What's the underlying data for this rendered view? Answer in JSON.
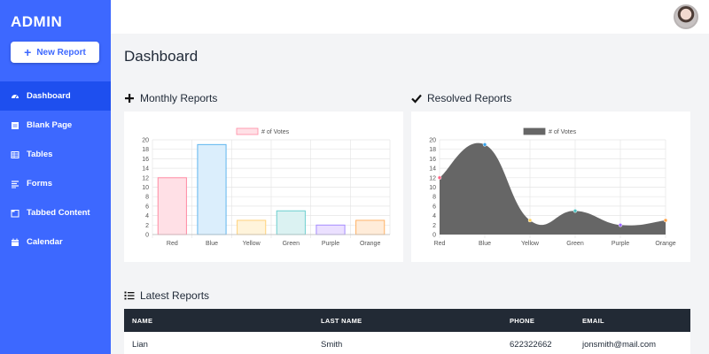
{
  "sidebar": {
    "brand": "ADMIN",
    "new_report_label": "New Report",
    "items": [
      {
        "label": "Dashboard",
        "icon": "dashboard-icon",
        "active": true
      },
      {
        "label": "Blank Page",
        "icon": "page-icon"
      },
      {
        "label": "Tables",
        "icon": "table-icon"
      },
      {
        "label": "Forms",
        "icon": "list-icon"
      },
      {
        "label": "Tabbed Content",
        "icon": "tab-icon"
      },
      {
        "label": "Calendar",
        "icon": "calendar-icon"
      }
    ],
    "color": "#3d68ff"
  },
  "header": {
    "avatar": "user-avatar"
  },
  "page_title": "Dashboard",
  "monthly": {
    "title": "Monthly Reports",
    "icon": "plus-icon"
  },
  "resolved": {
    "title": "Resolved Reports",
    "icon": "check-icon"
  },
  "latest": {
    "title": "Latest Reports",
    "icon": "list-icon",
    "columns": [
      "NAME",
      "LAST NAME",
      "PHONE",
      "EMAIL"
    ],
    "rows": [
      [
        "Lian",
        "Smith",
        "622322662",
        "jonsmith@mail.com"
      ]
    ]
  },
  "chart_data": [
    {
      "type": "bar",
      "categories": [
        "Red",
        "Blue",
        "Yellow",
        "Green",
        "Purple",
        "Orange"
      ],
      "series": [
        {
          "name": "# of Votes",
          "values": [
            12,
            19,
            3,
            5,
            2,
            3
          ]
        }
      ],
      "ylim": [
        0,
        20
      ],
      "yticks": [
        "0",
        "2",
        "4",
        "6",
        "8",
        "10",
        "12",
        "14",
        "16",
        "18",
        "20"
      ],
      "colors_fill": [
        "#ffe0e6",
        "#dbeefc",
        "#fff4db",
        "#dbf2f2",
        "#ebe0ff",
        "#ffecd9"
      ],
      "colors_stroke": [
        "#ff8aa3",
        "#5eb5ef",
        "#ffd27a",
        "#6dcfcf",
        "#a58bff",
        "#ffb266"
      ],
      "legend": "top"
    },
    {
      "type": "area",
      "categories": [
        "Red",
        "Blue",
        "Yellow",
        "Green",
        "Purple",
        "Orange"
      ],
      "series": [
        {
          "name": "# of Votes",
          "values": [
            12,
            19,
            3,
            5,
            2,
            3
          ]
        }
      ],
      "ylim": [
        0,
        20
      ],
      "yticks": [
        "0",
        "2",
        "4",
        "6",
        "8",
        "10",
        "12",
        "14",
        "16",
        "18",
        "20"
      ],
      "fill_color": "#666666",
      "point_colors": [
        "#ff6384",
        "#36a2eb",
        "#ffce56",
        "#4bc0c0",
        "#9966ff",
        "#ff9f40"
      ],
      "legend": "top"
    }
  ]
}
